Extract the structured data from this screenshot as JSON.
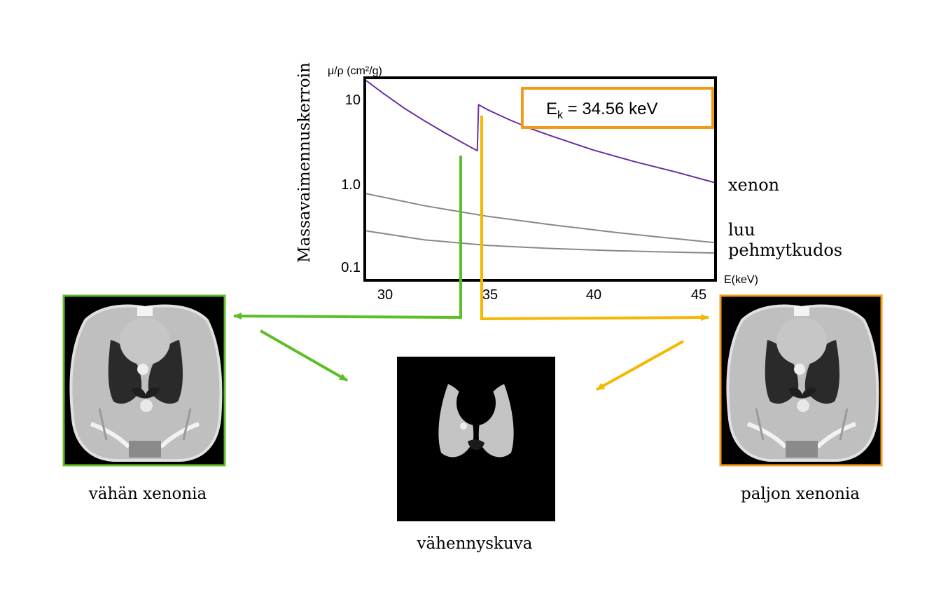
{
  "chart": {
    "type": "line",
    "y_axis_title": "Massavaimennuskerroin",
    "y_unit_label": "μ/ρ (cm²/g)",
    "x_unit_label": "E(keV)",
    "y_scale": "log",
    "xlim": [
      29.2,
      45.8
    ],
    "ylim": [
      0.085,
      14
    ],
    "x_ticks": [
      "30",
      "35",
      "40",
      "45"
    ],
    "y_ticks": [
      "10",
      "1.0",
      "0.1"
    ],
    "edge_box": {
      "prefix": "E",
      "sub": "k",
      "suffix": " = 34.56 keV"
    },
    "colors": {
      "xenon": "#6b2fa0",
      "tissue": "#888888",
      "low": "#5cbf26",
      "high": "#f5b700",
      "box": "#f29b1b"
    }
  },
  "chart_data": {
    "type": "line",
    "xlabel": "E(keV)",
    "ylabel": "Massavaimennuskerroin",
    "yscale": "log",
    "xlim": [
      29.2,
      45.8
    ],
    "ylim": [
      0.085,
      14
    ],
    "annotations": [
      "Ek = 34.56 keV"
    ],
    "series": [
      {
        "name": "xenon",
        "color": "#6b2fa0",
        "x": [
          29.2,
          30,
          31,
          32,
          33,
          34,
          34.5,
          34.56,
          35,
          36,
          37,
          38,
          40,
          42,
          44,
          45.8
        ],
        "y": [
          13.5,
          9.8,
          6.7,
          4.8,
          3.5,
          2.6,
          2.25,
          7.3,
          6.4,
          5.0,
          4.0,
          3.3,
          2.3,
          1.7,
          1.3,
          1.0
        ]
      },
      {
        "name": "luu",
        "color": "#888888",
        "x": [
          29.2,
          32,
          35,
          38,
          41,
          43,
          45.8
        ],
        "y": [
          0.75,
          0.55,
          0.42,
          0.34,
          0.28,
          0.25,
          0.215
        ]
      },
      {
        "name": "pehmytkudos",
        "color": "#888888",
        "x": [
          29.2,
          32,
          35,
          38,
          41,
          43,
          45.8
        ],
        "y": [
          0.29,
          0.23,
          0.2,
          0.185,
          0.175,
          0.17,
          0.165
        ]
      }
    ]
  },
  "labels": {
    "low_caption": "vähän xenonia",
    "high_caption": "paljon xenonia",
    "diff_caption": "vähennyskuva"
  }
}
